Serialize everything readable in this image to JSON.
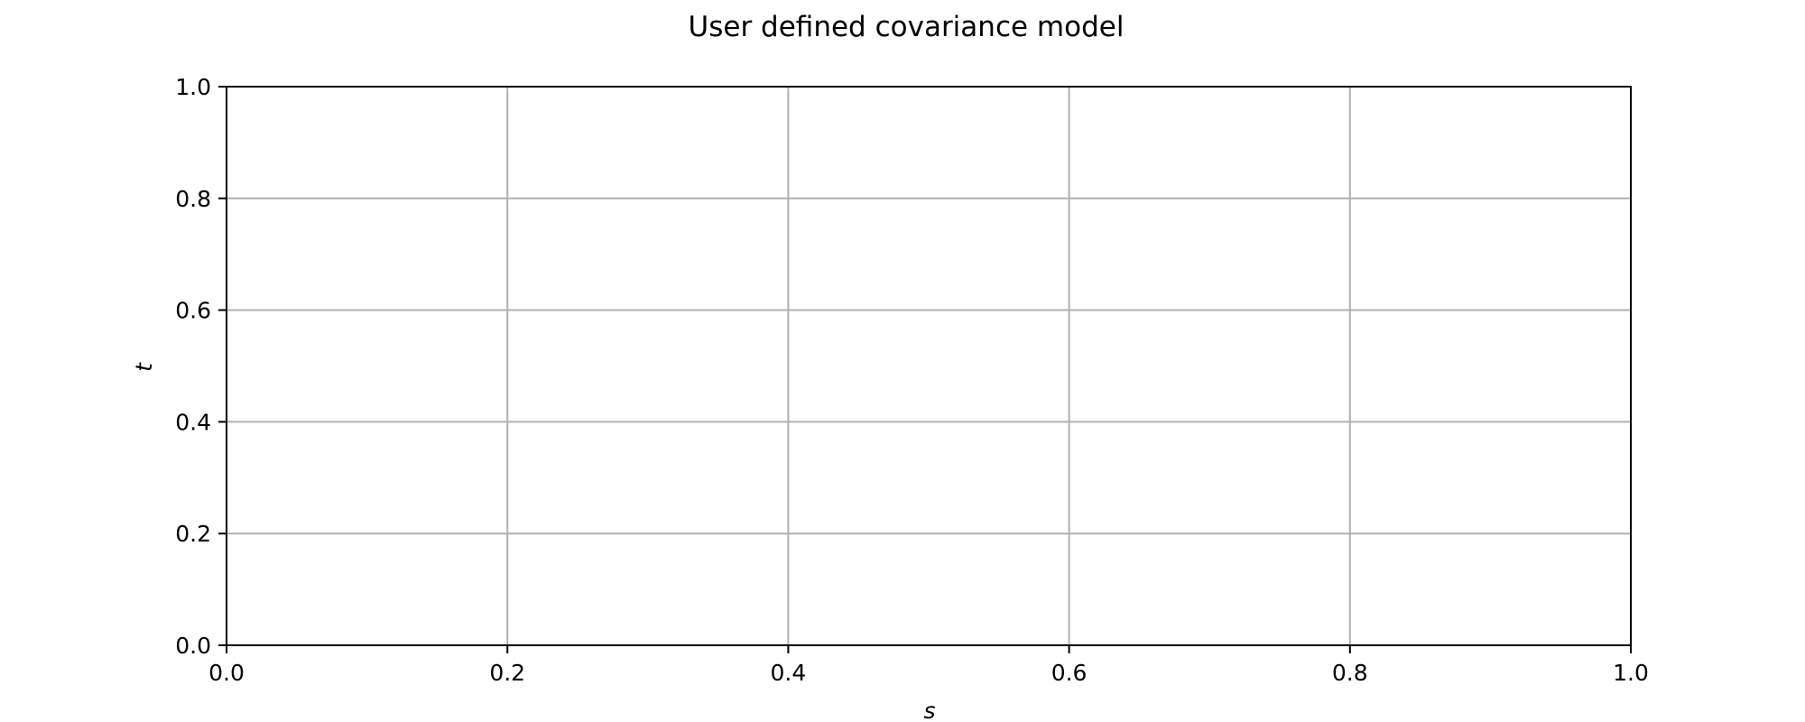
{
  "chart_data": {
    "type": "line",
    "title": "User defined covariance model",
    "xlabel": "s",
    "ylabel": "t",
    "xlim": [
      0.0,
      1.0
    ],
    "ylim": [
      0.0,
      1.0
    ],
    "xticks": [
      0.0,
      0.2,
      0.4,
      0.6,
      0.8,
      1.0
    ],
    "yticks": [
      0.0,
      0.2,
      0.4,
      0.6,
      0.8,
      1.0
    ],
    "xtick_labels": [
      "0.0",
      "0.2",
      "0.4",
      "0.6",
      "0.8",
      "1.0"
    ],
    "ytick_labels": [
      "0.0",
      "0.2",
      "0.4",
      "0.6",
      "0.8",
      "1.0"
    ],
    "grid": true,
    "series": [],
    "colors": {
      "grid": "#b0b0b0",
      "axes": "#000000",
      "background": "#ffffff"
    }
  }
}
